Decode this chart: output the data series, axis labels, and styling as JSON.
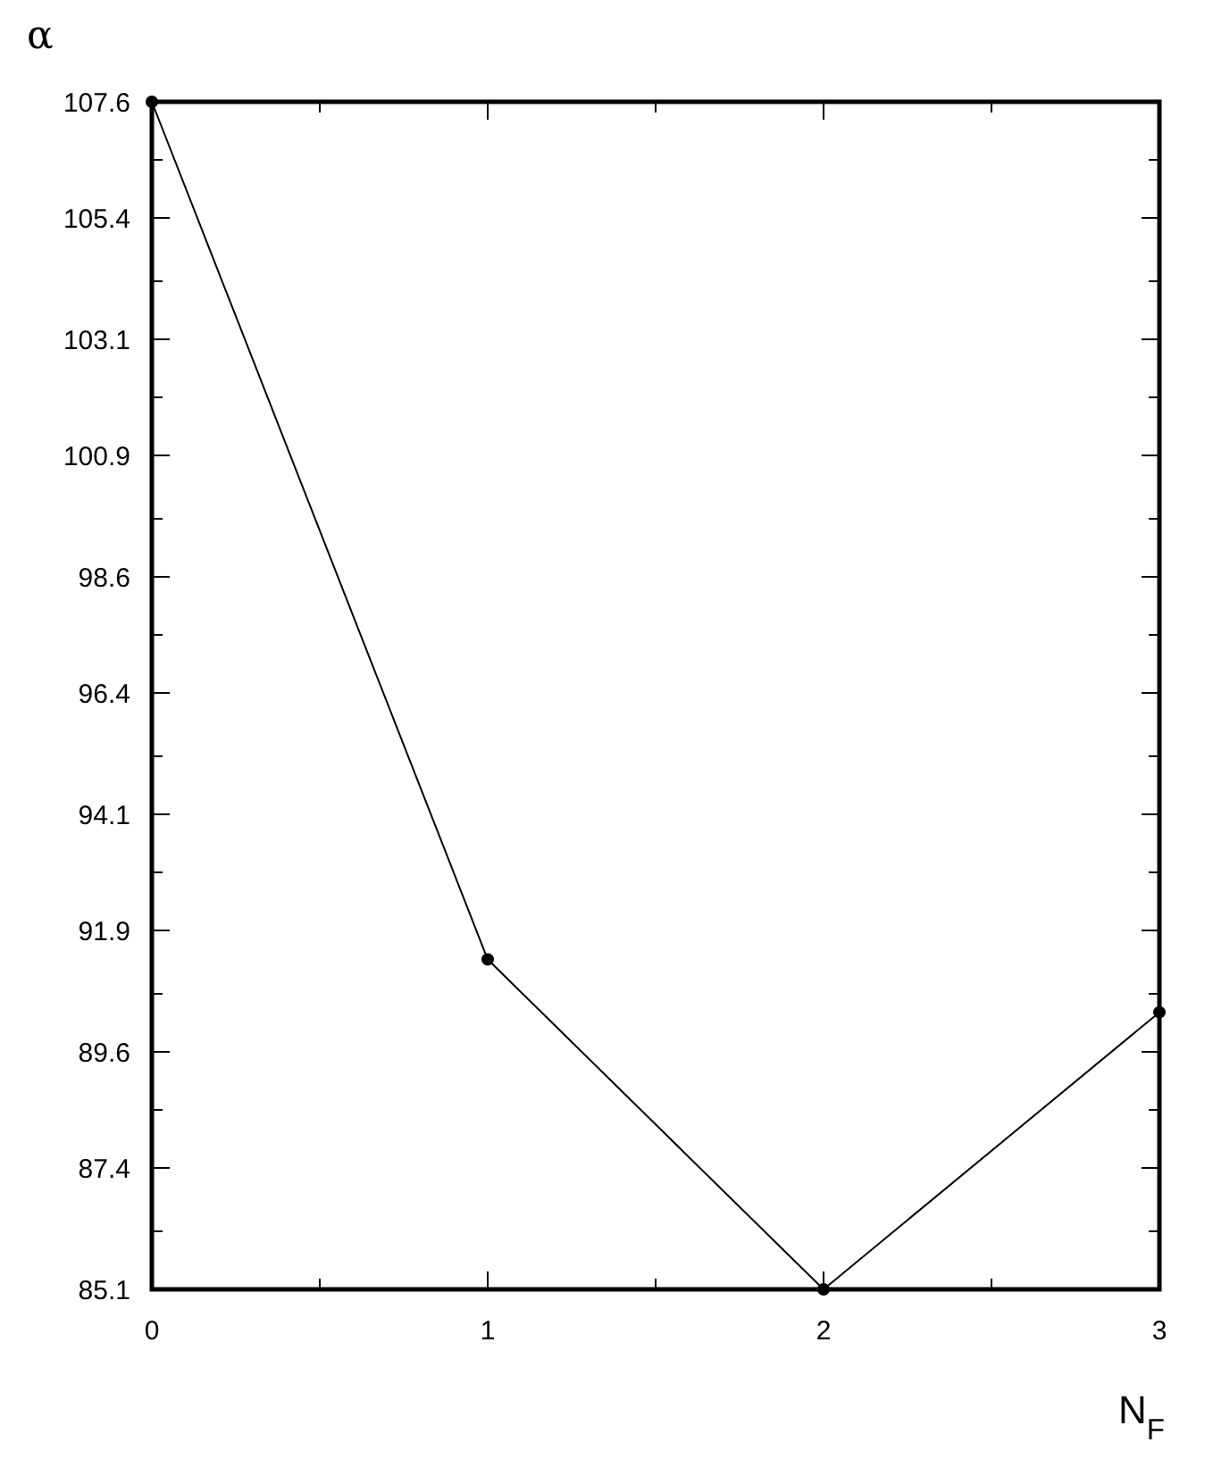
{
  "chart_data": {
    "type": "line",
    "xlabel": "N$_{F}$",
    "ylabel": "α",
    "x": [
      0,
      1,
      2,
      3
    ],
    "series": [
      {
        "color": "#000000",
        "values": [
          107.6,
          91.35,
          85.1,
          90.35
        ]
      }
    ],
    "xlim": [
      0,
      3
    ],
    "xticks": [
      0,
      {
        "value": 0.5,
        "label": null
      },
      1,
      {
        "value": 1.5,
        "label": null
      },
      2,
      {
        "value": 2.5,
        "label": null
      },
      3
    ],
    "ylim": [
      85.1,
      107.6
    ],
    "yticks": [
      85.1,
      {
        "value": 86.2,
        "label": null
      },
      87.4,
      {
        "value": 88.5,
        "label": null
      },
      89.6,
      {
        "value": 90.7,
        "label": null
      },
      91.9,
      {
        "value": 93.0,
        "label": null
      },
      94.1,
      {
        "value": 95.2,
        "label": null
      },
      96.4,
      {
        "value": 97.5,
        "label": null
      },
      98.6,
      {
        "value": 99.7,
        "label": null
      },
      100.9,
      {
        "value": 102.0,
        "label": null
      },
      103.1,
      {
        "value": 104.2,
        "label": null
      },
      105.4,
      {
        "value": 106.5,
        "label": null
      },
      107.6
    ],
    "marker": "circle",
    "line_style": "solid",
    "grid": false
  }
}
